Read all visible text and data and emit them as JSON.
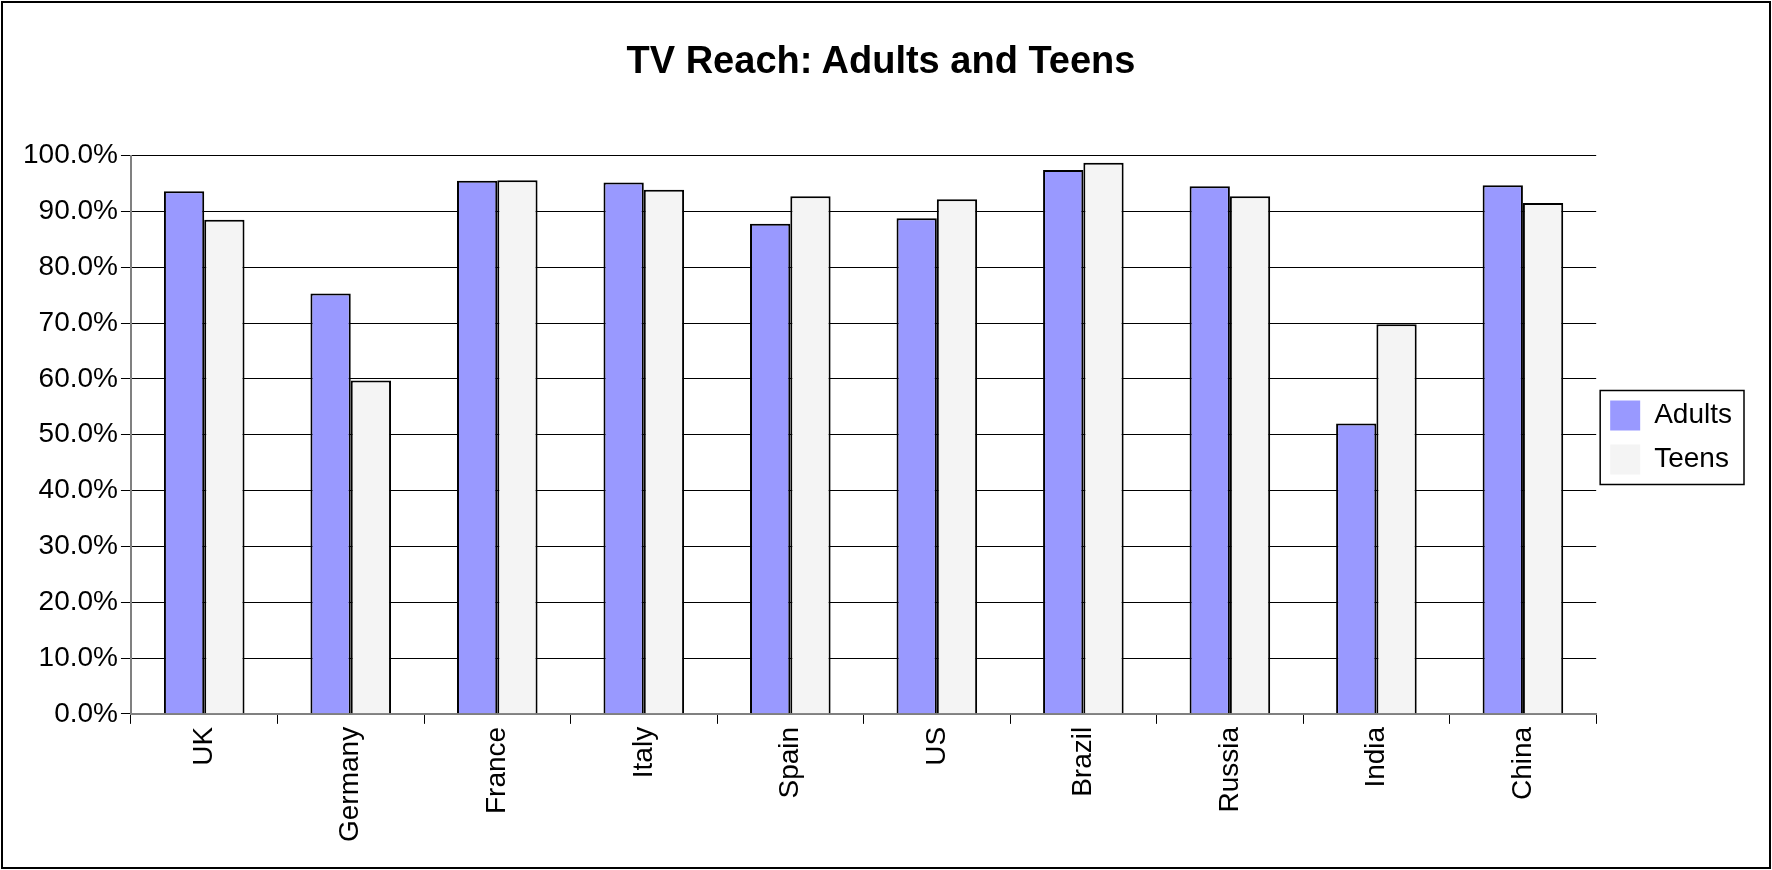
{
  "chart_data": {
    "type": "bar",
    "title": "TV Reach: Adults and Teens",
    "categories": [
      "UK",
      "Germany",
      "France",
      "Italy",
      "Spain",
      "US",
      "Brazil",
      "Russia",
      "India",
      "China"
    ],
    "series": [
      {
        "name": "Adults",
        "color": "#9999ff",
        "values": [
          93.6,
          75.3,
          95.5,
          95.2,
          87.8,
          88.8,
          97.4,
          94.5,
          52,
          94.7
        ]
      },
      {
        "name": "Teens",
        "color": "#f4f4f4",
        "values": [
          88.5,
          59.7,
          95.6,
          93.9,
          92.7,
          92.2,
          98.7,
          92.7,
          69.8,
          91.5
        ]
      }
    ],
    "ylim": [
      0,
      100
    ],
    "yticks": [
      {
        "value": 0,
        "label": "0.0%"
      },
      {
        "value": 10,
        "label": "10.0%"
      },
      {
        "value": 20,
        "label": "20.0%"
      },
      {
        "value": 30,
        "label": "30.0%"
      },
      {
        "value": 40,
        "label": "40.0%"
      },
      {
        "value": 50,
        "label": "50.0%"
      },
      {
        "value": 60,
        "label": "60.0%"
      },
      {
        "value": 70,
        "label": "70.0%"
      },
      {
        "value": 80,
        "label": "80.0%"
      },
      {
        "value": 90,
        "label": "90.0%"
      },
      {
        "value": 100,
        "label": "100.0%"
      }
    ],
    "grid": "y",
    "legend": "right"
  }
}
